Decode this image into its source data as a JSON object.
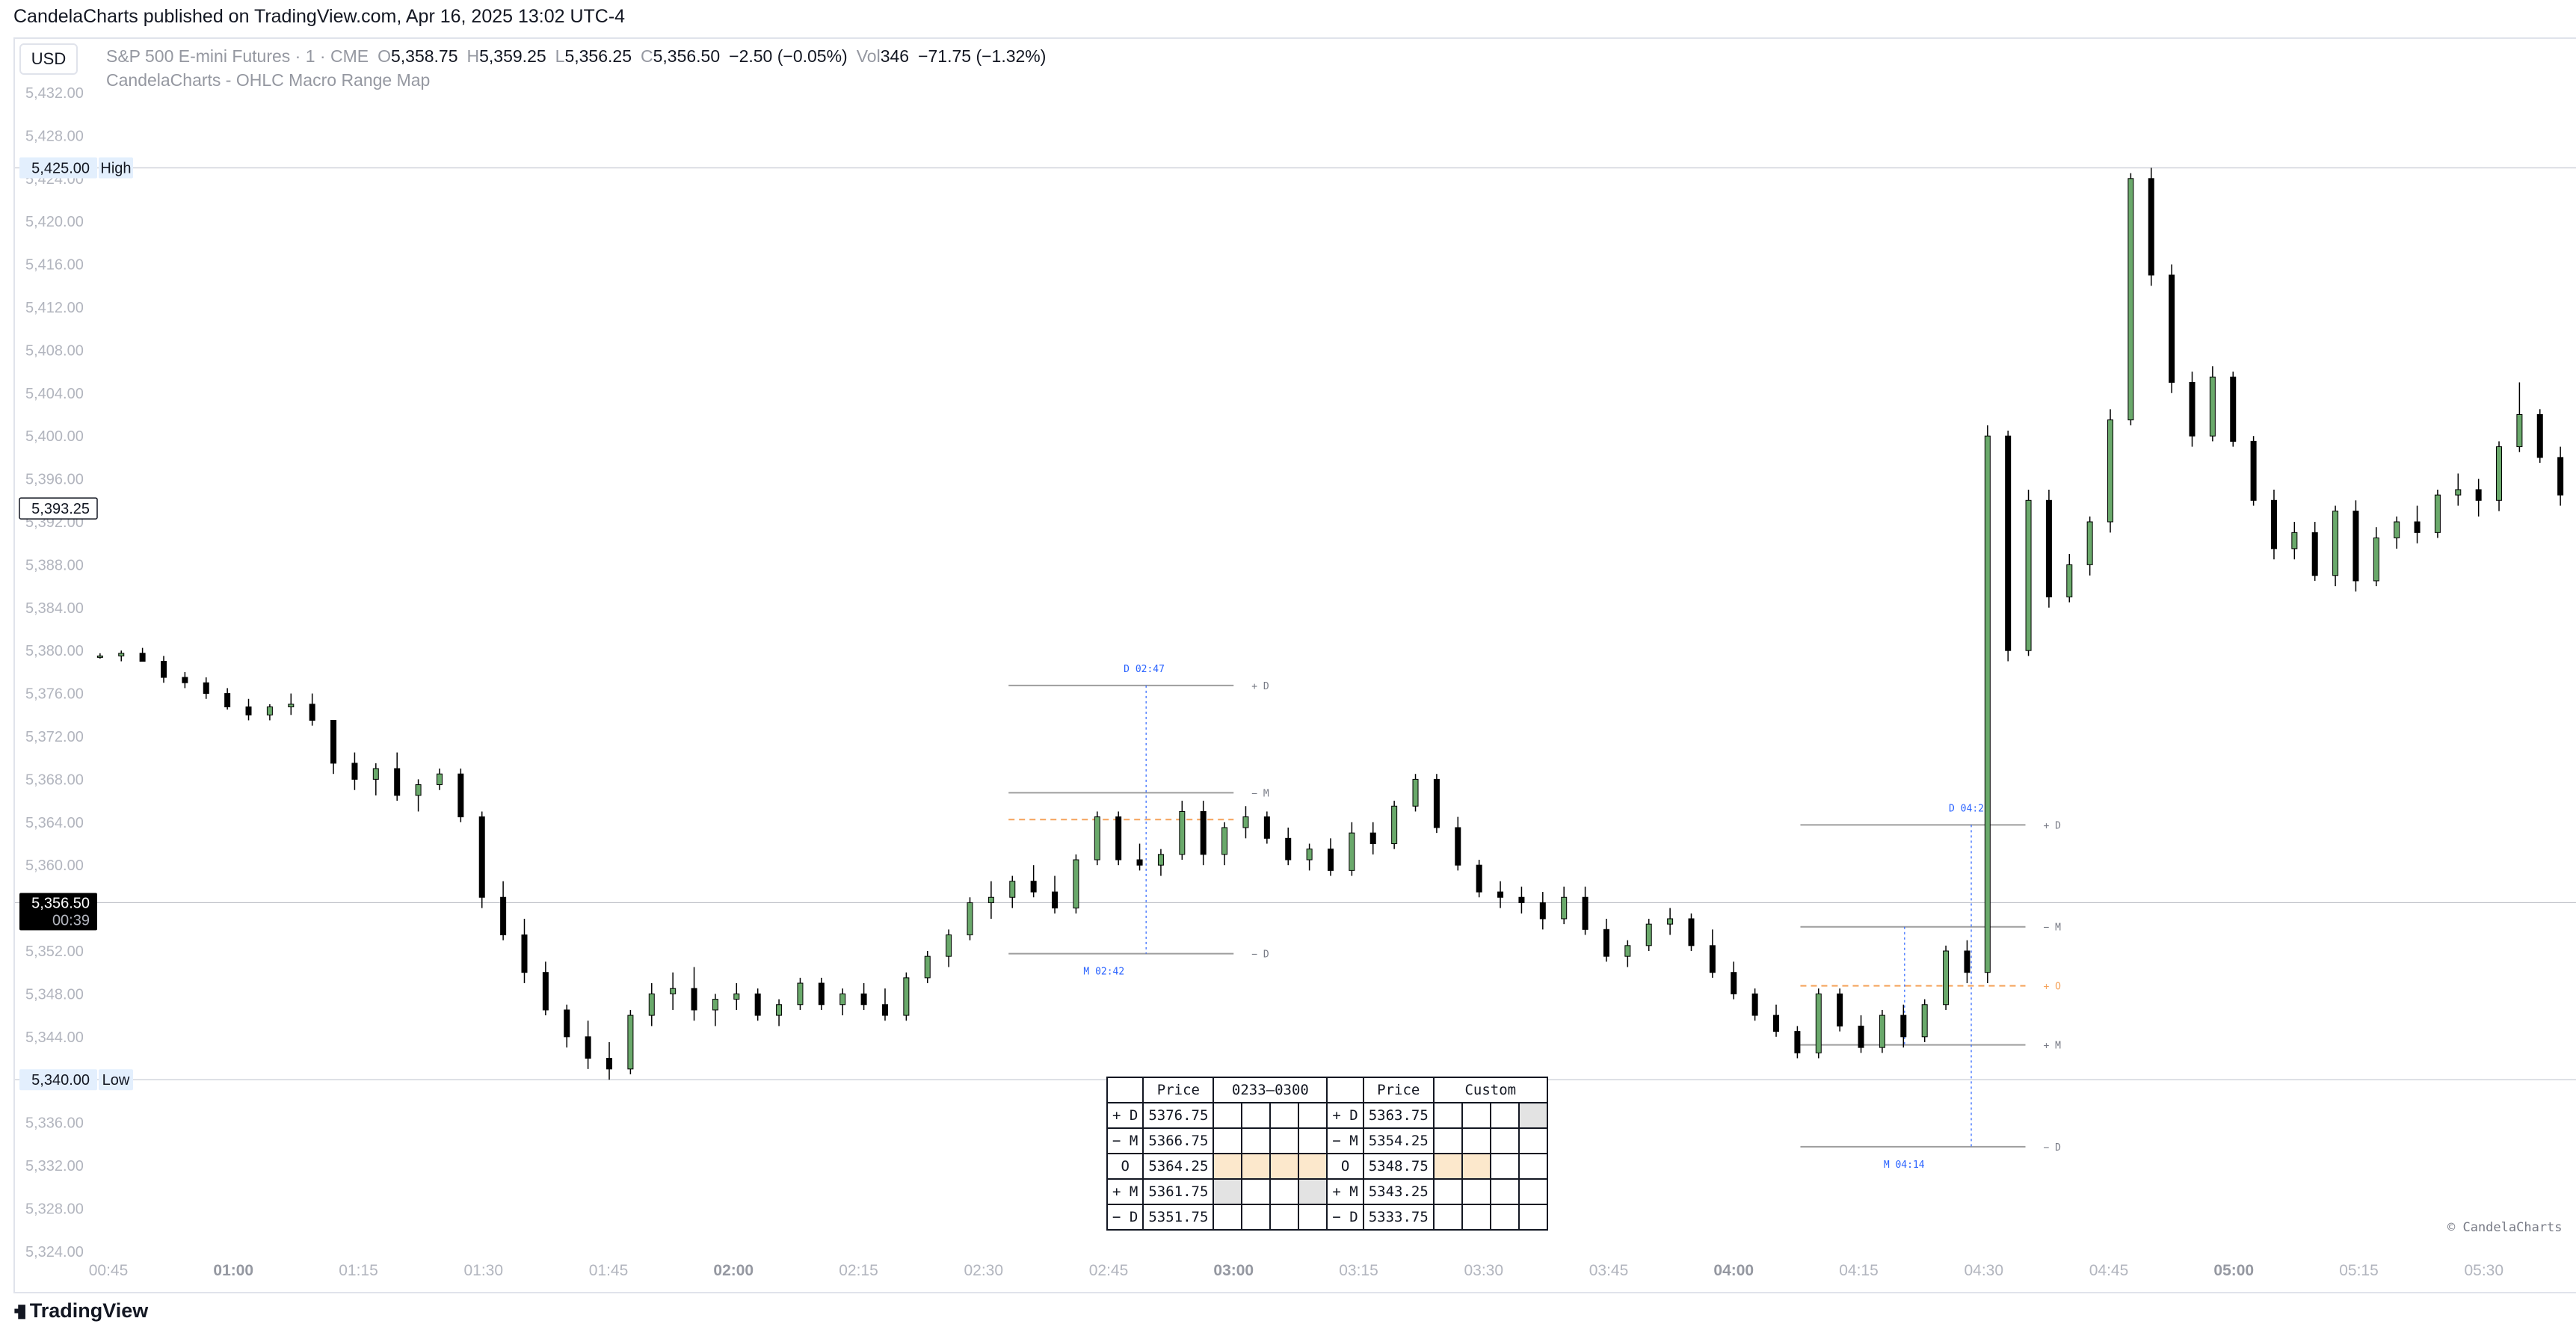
{
  "header": {
    "published_text": "CandelaCharts published on TradingView.com, Apr 16, 2025 13:02 UTC-4"
  },
  "toolbar": {
    "currency_label": "USD"
  },
  "legend": {
    "symbol": "S&P 500 E-mini Futures · 1 · CME",
    "open_label": "O",
    "open": "5,358.75",
    "high_label": "H",
    "high": "5,359.25",
    "low_label": "L",
    "low": "5,356.25",
    "close_label": "C",
    "close": "5,356.50",
    "change": "−2.50 (−0.05%)",
    "vol_label": "Vol",
    "vol": "346",
    "vol_change": "−71.75 (−1.32%)"
  },
  "indicator": {
    "name": "CandelaCharts - OHLC Macro Range Map"
  },
  "watermark": "© CandelaCharts",
  "footer": {
    "brand": "TradingView"
  },
  "colors": {
    "up": "#6aa96b",
    "down": "#000000",
    "range_line": "#9e9e9e",
    "open_line": "#f5a35b",
    "time_line": "#2962ff",
    "last_price_bg": "#000000",
    "hl_label_bg": "#e3effd"
  },
  "chart_data": {
    "type": "candlestick",
    "symbol": "S&P 500 E-mini Futures",
    "interval": "1",
    "y_axis": {
      "range": [
        5322,
        5434
      ],
      "ticks": [
        "5,432.00",
        "5,428.00",
        "5,424.00",
        "5,420.00",
        "5,416.00",
        "5,412.00",
        "5,408.00",
        "5,404.00",
        "5,400.00",
        "5,396.00",
        "5,392.00",
        "5,388.00",
        "5,384.00",
        "5,380.00",
        "5,376.00",
        "5,372.00",
        "5,368.00",
        "5,364.00",
        "5,360.00",
        "5,356.00",
        "5,352.00",
        "5,348.00",
        "5,344.00",
        "5,340.00",
        "5,336.00",
        "5,332.00",
        "5,328.00",
        "5,324.00"
      ]
    },
    "x_axis": {
      "labels": [
        {
          "t": 45,
          "text": "00:45",
          "bold": false
        },
        {
          "t": 60,
          "text": "01:00",
          "bold": true
        },
        {
          "t": 75,
          "text": "01:15",
          "bold": false
        },
        {
          "t": 90,
          "text": "01:30",
          "bold": false
        },
        {
          "t": 105,
          "text": "01:45",
          "bold": false
        },
        {
          "t": 120,
          "text": "02:00",
          "bold": true
        },
        {
          "t": 135,
          "text": "02:15",
          "bold": false
        },
        {
          "t": 150,
          "text": "02:30",
          "bold": false
        },
        {
          "t": 165,
          "text": "02:45",
          "bold": false
        },
        {
          "t": 180,
          "text": "03:00",
          "bold": true
        },
        {
          "t": 195,
          "text": "03:15",
          "bold": false
        },
        {
          "t": 210,
          "text": "03:30",
          "bold": false
        },
        {
          "t": 225,
          "text": "03:45",
          "bold": false
        },
        {
          "t": 240,
          "text": "04:00",
          "bold": true
        },
        {
          "t": 255,
          "text": "04:15",
          "bold": false
        },
        {
          "t": 270,
          "text": "04:30",
          "bold": false
        },
        {
          "t": 285,
          "text": "04:45",
          "bold": false
        },
        {
          "t": 300,
          "text": "05:00",
          "bold": true
        },
        {
          "t": 315,
          "text": "05:15",
          "bold": false
        },
        {
          "t": 330,
          "text": "05:30",
          "bold": false
        },
        {
          "t": 345,
          "text": "05:45",
          "bold": false
        }
      ]
    },
    "high_level": {
      "price": 5425.0,
      "price_label": "5,425.00",
      "label": "High"
    },
    "low_level": {
      "price": 5340.0,
      "price_label": "5,340.00",
      "label": "Low"
    },
    "crosshair_price": {
      "price": 5393.25,
      "label": "5,393.25"
    },
    "last_price": {
      "price": 5356.5,
      "label": "5,356.50",
      "countdown": "00:39"
    },
    "key": [
      [
        5379.5,
        5379.75,
        5379.25,
        5379.5
      ],
      [
        5379.5,
        5380.0,
        5379.0,
        5379.75
      ],
      [
        5379.75,
        5380.25,
        5379.0,
        5379.0
      ],
      [
        5379.0,
        5379.5,
        5377.0,
        5377.5
      ],
      [
        5377.5,
        5378.0,
        5376.5,
        5377.0
      ],
      [
        5377.0,
        5377.5,
        5375.5,
        5376.0
      ],
      [
        5376.0,
        5376.5,
        5374.5,
        5374.75
      ],
      [
        5374.75,
        5375.5,
        5373.5,
        5374.0
      ],
      [
        5374.0,
        5375.0,
        5373.5,
        5374.75
      ],
      [
        5374.75,
        5376.0,
        5374.0,
        5375.0
      ],
      [
        5375.0,
        5376.0,
        5373.0,
        5373.5
      ],
      [
        5373.5,
        5372.0,
        5368.5,
        5369.5
      ],
      [
        5369.5,
        5370.5,
        5367.0,
        5368.0
      ],
      [
        5368.0,
        5369.5,
        5366.5,
        5369.0
      ],
      [
        5369.0,
        5370.5,
        5366.0,
        5366.5
      ],
      [
        5366.5,
        5368.0,
        5365.0,
        5367.5
      ],
      [
        5367.5,
        5369.0,
        5367.0,
        5368.5
      ],
      [
        5368.5,
        5369.0,
        5364.0,
        5364.5
      ],
      [
        5364.5,
        5365.0,
        5356.0,
        5357.0
      ],
      [
        5357.0,
        5358.5,
        5353.0,
        5353.5
      ],
      [
        5353.5,
        5355.0,
        5349.0,
        5350.0
      ],
      [
        5350.0,
        5351.0,
        5346.0,
        5346.5
      ],
      [
        5346.5,
        5347.0,
        5343.0,
        5344.0
      ],
      [
        5344.0,
        5345.5,
        5341.0,
        5342.0
      ],
      [
        5342.0,
        5343.5,
        5340.0,
        5341.0
      ],
      [
        5341.0,
        5346.5,
        5340.5,
        5346.0
      ],
      [
        5346.0,
        5349.0,
        5345.0,
        5348.0
      ],
      [
        5348.0,
        5350.0,
        5346.5,
        5348.5
      ],
      [
        5348.5,
        5350.5,
        5345.5,
        5346.5
      ],
      [
        5346.5,
        5348.0,
        5345.0,
        5347.5
      ],
      [
        5347.5,
        5349.0,
        5346.5,
        5348.0
      ],
      [
        5348.0,
        5348.5,
        5345.5,
        5346.0
      ],
      [
        5346.0,
        5347.5,
        5345.0,
        5347.0
      ],
      [
        5347.0,
        5349.5,
        5346.5,
        5349.0
      ],
      [
        5349.0,
        5349.5,
        5346.5,
        5347.0
      ],
      [
        5347.0,
        5348.5,
        5346.0,
        5348.0
      ],
      [
        5348.0,
        5349.0,
        5346.5,
        5347.0
      ],
      [
        5347.0,
        5348.5,
        5345.5,
        5346.0
      ],
      [
        5346.0,
        5350.0,
        5345.5,
        5349.5
      ],
      [
        5349.5,
        5352.0,
        5349.0,
        5351.5
      ],
      [
        5351.5,
        5354.0,
        5350.5,
        5353.5
      ],
      [
        5353.5,
        5357.0,
        5353.0,
        5356.5
      ],
      [
        5356.5,
        5358.5,
        5355.0,
        5357.0
      ],
      [
        5357.0,
        5359.0,
        5356.0,
        5358.5
      ],
      [
        5358.5,
        5360.0,
        5357.0,
        5357.5
      ],
      [
        5357.5,
        5359.0,
        5355.5,
        5356.0
      ],
      [
        5356.0,
        5361.0,
        5355.5,
        5360.5
      ],
      [
        5360.5,
        5365.0,
        5360.0,
        5364.5
      ],
      [
        5364.5,
        5365.0,
        5360.0,
        5360.5
      ],
      [
        5360.5,
        5362.0,
        5359.5,
        5360.0
      ],
      [
        5360.0,
        5361.5,
        5359.0,
        5361.0
      ],
      [
        5361.0,
        5366.0,
        5360.5,
        5365.0
      ],
      [
        5365.0,
        5366.0,
        5360.0,
        5361.0
      ],
      [
        5361.0,
        5364.0,
        5360.0,
        5363.5
      ],
      [
        5363.5,
        5365.5,
        5362.5,
        5364.5
      ],
      [
        5364.5,
        5365.0,
        5362.0,
        5362.5
      ],
      [
        5362.5,
        5363.5,
        5360.0,
        5360.5
      ],
      [
        5360.5,
        5362.0,
        5359.5,
        5361.5
      ],
      [
        5361.5,
        5362.5,
        5359.0,
        5359.5
      ],
      [
        5359.5,
        5364.0,
        5359.0,
        5363.0
      ],
      [
        5363.0,
        5364.0,
        5361.0,
        5362.0
      ],
      [
        5362.0,
        5366.0,
        5361.5,
        5365.5
      ],
      [
        5365.5,
        5368.5,
        5365.0,
        5368.0
      ],
      [
        5368.0,
        5368.5,
        5363.0,
        5363.5
      ],
      [
        5363.5,
        5364.5,
        5359.5,
        5360.0
      ],
      [
        5360.0,
        5360.5,
        5357.0,
        5357.5
      ],
      [
        5357.5,
        5358.5,
        5356.0,
        5357.0
      ],
      [
        5357.0,
        5358.0,
        5355.5,
        5356.5
      ],
      [
        5356.5,
        5357.5,
        5354.0,
        5355.0
      ],
      [
        5355.0,
        5358.0,
        5354.5,
        5357.0
      ],
      [
        5357.0,
        5358.0,
        5353.5,
        5354.0
      ],
      [
        5354.0,
        5355.0,
        5351.0,
        5351.5
      ],
      [
        5351.5,
        5353.0,
        5350.5,
        5352.5
      ],
      [
        5352.5,
        5355.0,
        5352.0,
        5354.5
      ],
      [
        5354.5,
        5356.0,
        5353.5,
        5355.0
      ],
      [
        5355.0,
        5355.5,
        5352.0,
        5352.5
      ],
      [
        5352.5,
        5354.0,
        5349.5,
        5350.0
      ],
      [
        5350.0,
        5351.0,
        5347.5,
        5348.0
      ],
      [
        5348.0,
        5348.5,
        5345.5,
        5346.0
      ],
      [
        5346.0,
        5347.0,
        5344.0,
        5344.5
      ],
      [
        5344.5,
        5345.0,
        5342.0,
        5342.5
      ],
      [
        5342.5,
        5348.5,
        5342.0,
        5348.0
      ],
      [
        5348.0,
        5348.5,
        5344.5,
        5345.0
      ],
      [
        5345.0,
        5346.0,
        5342.5,
        5343.0
      ],
      [
        5343.0,
        5346.5,
        5342.5,
        5346.0
      ],
      [
        5346.0,
        5347.0,
        5343.0,
        5344.0
      ],
      [
        5344.0,
        5347.5,
        5343.5,
        5347.0
      ],
      [
        5347.0,
        5352.5,
        5346.5,
        5352.0
      ],
      [
        5352.0,
        5353.0,
        5349.0,
        5350.0
      ],
      [
        5350.0,
        5401.0,
        5349.0,
        5400.0
      ],
      [
        5400.0,
        5400.5,
        5379.0,
        5380.0
      ],
      [
        5380.0,
        5395.0,
        5379.5,
        5394.0
      ],
      [
        5394.0,
        5395.0,
        5384.0,
        5385.0
      ],
      [
        5385.0,
        5389.0,
        5384.5,
        5388.0
      ],
      [
        5388.0,
        5392.5,
        5387.0,
        5392.0
      ],
      [
        5392.0,
        5402.5,
        5391.0,
        5401.5
      ],
      [
        5401.5,
        5424.5,
        5401.0,
        5424.0
      ],
      [
        5424.0,
        5425.0,
        5414.0,
        5415.0
      ],
      [
        5415.0,
        5416.0,
        5404.0,
        5405.0
      ],
      [
        5405.0,
        5406.0,
        5399.0,
        5400.0
      ],
      [
        5400.0,
        5406.5,
        5399.5,
        5405.5
      ],
      [
        5405.5,
        5406.0,
        5399.0,
        5399.5
      ],
      [
        5399.5,
        5400.0,
        5393.5,
        5394.0
      ],
      [
        5394.0,
        5395.0,
        5388.5,
        5389.5
      ],
      [
        5389.5,
        5392.0,
        5388.5,
        5391.0
      ],
      [
        5391.0,
        5392.0,
        5386.5,
        5387.0
      ],
      [
        5387.0,
        5393.5,
        5386.0,
        5393.0
      ],
      [
        5393.0,
        5394.0,
        5385.5,
        5386.5
      ],
      [
        5386.5,
        5391.5,
        5386.0,
        5390.5
      ],
      [
        5390.5,
        5392.5,
        5389.5,
        5392.0
      ],
      [
        5392.0,
        5393.5,
        5390.0,
        5391.0
      ],
      [
        5391.0,
        5395.0,
        5390.5,
        5394.5
      ],
      [
        5394.5,
        5396.5,
        5393.5,
        5395.0
      ],
      [
        5395.0,
        5396.0,
        5392.5,
        5394.0
      ],
      [
        5394.0,
        5399.5,
        5393.0,
        5399.0
      ],
      [
        5399.0,
        5405.0,
        5398.5,
        5402.0
      ],
      [
        5402.0,
        5402.5,
        5397.5,
        5398.0
      ],
      [
        5398.0,
        5399.0,
        5393.5,
        5394.5
      ],
      [
        5394.5,
        5396.5,
        5393.0,
        5396.0
      ],
      [
        5396.0,
        5399.5,
        5395.0,
        5399.0
      ],
      [
        5399.0,
        5400.0,
        5396.5,
        5397.0
      ],
      [
        5397.0,
        5398.0,
        5394.0,
        5394.5
      ]
    ],
    "candles": [],
    "range_maps": [
      {
        "t_start": 153,
        "t_end": 180,
        "t_anchor": 170,
        "levels": [
          {
            "key": "plus_d",
            "price": 5376.75,
            "label": "+ D",
            "kind": "range"
          },
          {
            "key": "minus_m",
            "price": 5366.75,
            "label": "− M",
            "kind": "range"
          },
          {
            "key": "open",
            "price": 5364.25,
            "label": "",
            "kind": "open"
          },
          {
            "key": "plus_m",
            "price": 5361.75,
            "label": "",
            "kind": "hidden"
          },
          {
            "key": "minus_d",
            "price": 5351.75,
            "label": "− D",
            "kind": "range"
          }
        ],
        "d_marker": {
          "text": "D 02:47",
          "t": 169.5,
          "price": 5376.75
        },
        "m_marker": {
          "text": "M 02:42",
          "t": 164.5,
          "price": 5351.75
        }
      },
      {
        "t_start": 248,
        "t_end": 275,
        "t_anchor": 268,
        "levels": [
          {
            "key": "plus_d",
            "price": 5363.75,
            "label": "+ D",
            "kind": "range"
          },
          {
            "key": "minus_m",
            "price": 5354.25,
            "label": "− M",
            "kind": "range"
          },
          {
            "key": "open",
            "price": 5348.75,
            "label": "+ O",
            "kind": "open"
          },
          {
            "key": "plus_m",
            "price": 5343.25,
            "label": "+ M",
            "kind": "range"
          },
          {
            "key": "minus_d",
            "price": 5333.75,
            "label": "− D",
            "kind": "range"
          }
        ],
        "d_marker": {
          "text": "D 04:22",
          "t": 268.5,
          "price": 5363.75
        },
        "m_marker": {
          "text": "M 04:14",
          "t": 260.5,
          "price": 5333.75
        }
      }
    ]
  },
  "table": {
    "header": [
      "",
      "Price",
      "0233–0300",
      "",
      "Price",
      "Custom"
    ],
    "rows": [
      {
        "label_a": "+ D",
        "price_a": "5376.75",
        "label_b": "+ D",
        "price_b": "5363.75",
        "hl_a": [],
        "hl_b": [
          4
        ]
      },
      {
        "label_a": "− M",
        "price_a": "5366.75",
        "label_b": "− M",
        "price_b": "5354.25",
        "hl_a": [],
        "hl_b": []
      },
      {
        "label_a": "O",
        "price_a": "5364.25",
        "label_b": "O",
        "price_b": "5348.75",
        "hl_a": [
          1,
          2,
          3,
          4
        ],
        "hl_b": [
          1,
          2
        ],
        "hl_kind": "orange"
      },
      {
        "label_a": "+ M",
        "price_a": "5361.75",
        "label_b": "+ M",
        "price_b": "5343.25",
        "hl_a": [
          1,
          4
        ],
        "hl_b": [],
        "hl_kind": "gray"
      },
      {
        "label_a": "− D",
        "price_a": "5351.75",
        "label_b": "− D",
        "price_b": "5333.75",
        "hl_a": [],
        "hl_b": []
      }
    ]
  }
}
